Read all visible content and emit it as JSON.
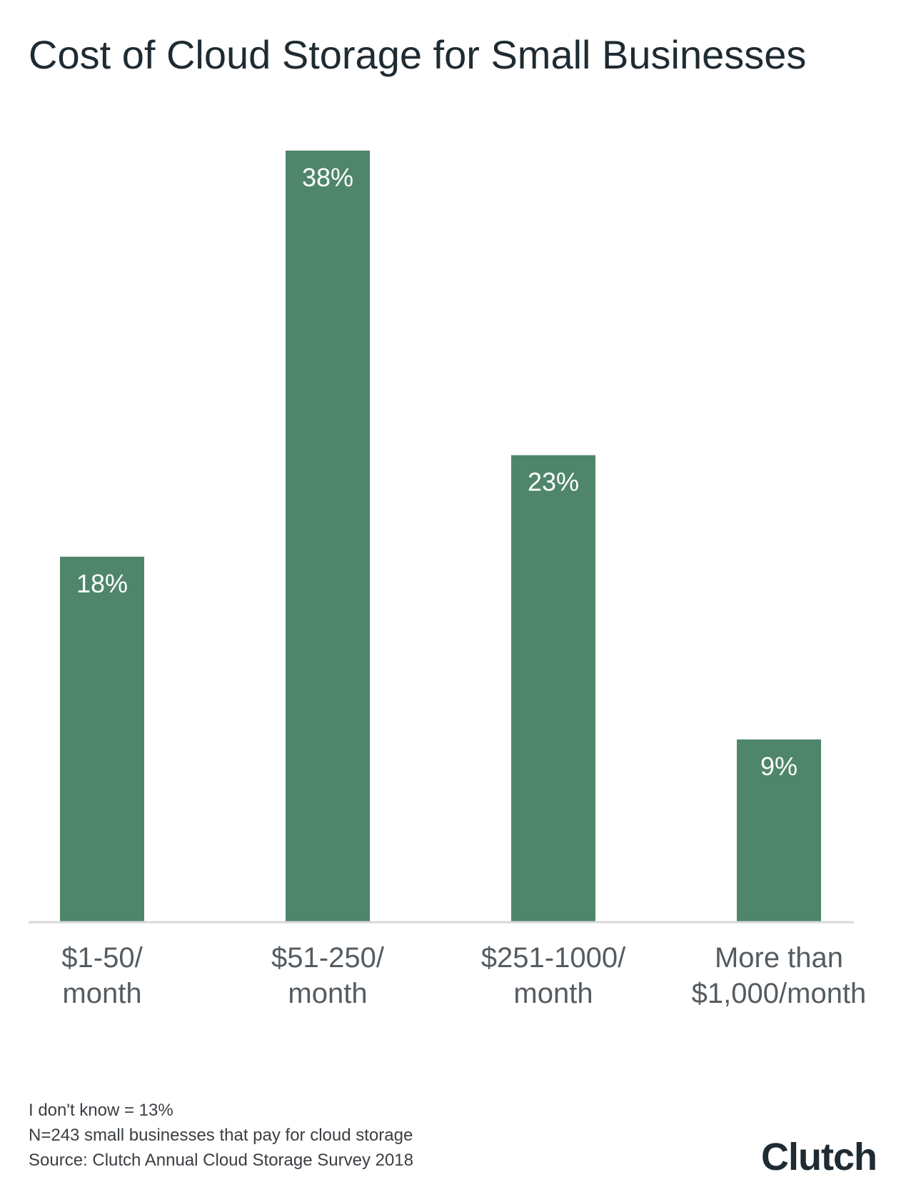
{
  "chart_data": {
    "type": "bar",
    "title": "Cost of Cloud Storage for Small Businesses",
    "categories": [
      [
        "$1-50/",
        "month"
      ],
      [
        "$51-250/",
        "month"
      ],
      [
        "$251-1000/",
        "month"
      ],
      [
        "More than",
        "$1,000/month"
      ]
    ],
    "values": [
      18,
      38,
      23,
      9
    ],
    "value_labels": [
      "18%",
      "38%",
      "23%",
      "9%"
    ],
    "ylim": [
      0,
      40
    ],
    "grid": false,
    "bar_color": "#4f866b"
  },
  "footnotes": {
    "line1": "I don't know = 13%",
    "line2": "N=243 small businesses that pay for cloud storage",
    "line3": "Source: Clutch Annual Cloud Storage Survey 2018"
  },
  "logo": {
    "text": "Clutch",
    "dot_color": "#e2413b"
  }
}
